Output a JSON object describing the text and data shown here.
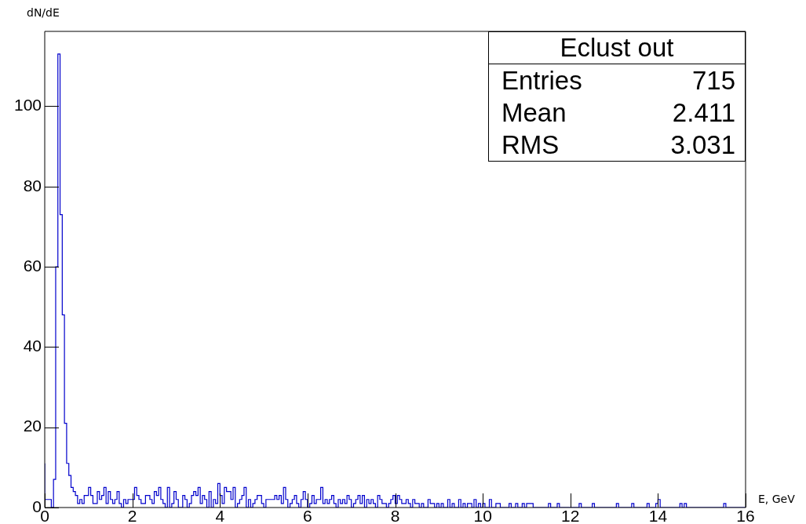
{
  "chart_data": {
    "type": "histogram",
    "xlabel": "E, GeV",
    "ylabel": "dN/dE",
    "annotations": [
      "Eclust out",
      "Entries",
      "715",
      "Mean",
      "2.411",
      "RMS",
      "3.031"
    ],
    "color": "#0000cc",
    "bins": [
      0,
      0.05,
      0.1,
      0.15,
      0.2,
      0.25,
      0.3,
      0.35,
      0.4,
      0.45,
      0.5,
      0.55,
      0.6,
      0.65,
      0.7,
      0.75,
      0.8,
      0.85,
      0.9,
      0.95,
      1,
      1.05,
      1.1,
      1.15,
      1.2,
      1.25,
      1.3,
      1.35,
      1.4,
      1.45,
      1.5,
      1.55,
      1.6,
      1.65,
      1.7,
      1.75,
      1.8,
      1.85,
      1.9,
      1.95,
      2,
      2.05,
      2.1,
      2.15,
      2.2,
      2.25,
      2.3,
      2.35,
      2.4,
      2.45,
      2.5,
      2.55,
      2.6,
      2.65,
      2.7,
      2.75,
      2.8,
      2.85,
      2.9,
      2.95,
      3,
      3.05,
      3.1,
      3.15,
      3.2,
      3.25,
      3.3,
      3.35,
      3.4,
      3.45,
      3.5,
      3.55,
      3.6,
      3.65,
      3.7,
      3.75,
      3.8,
      3.85,
      3.9,
      3.95,
      4,
      4.05,
      4.1,
      4.15,
      4.2,
      4.25,
      4.3,
      4.35,
      4.4,
      4.45,
      4.5,
      4.55,
      4.6,
      4.65,
      4.7,
      4.75,
      4.8,
      4.85,
      4.9,
      4.95,
      5,
      5.05,
      5.1,
      5.15,
      5.2,
      5.25,
      5.3,
      5.35,
      5.4,
      5.45,
      5.5,
      5.55,
      5.6,
      5.65,
      5.7,
      5.75,
      5.8,
      5.85,
      5.9,
      5.95,
      6,
      6.05,
      6.1,
      6.15,
      6.2,
      6.25,
      6.3,
      6.35,
      6.4,
      6.45,
      6.5,
      6.55,
      6.6,
      6.65,
      6.7,
      6.75,
      6.8,
      6.85,
      6.9,
      6.95,
      7,
      7.05,
      7.1,
      7.15,
      7.2,
      7.25,
      7.3,
      7.35,
      7.4,
      7.45,
      7.5,
      7.55,
      7.6,
      7.65,
      7.7,
      7.75,
      7.8,
      7.85,
      7.9,
      7.95,
      8,
      8.05,
      8.1,
      8.15,
      8.2,
      8.25,
      8.3,
      8.35,
      8.4,
      8.45,
      8.5,
      8.55,
      8.6,
      8.65,
      8.7,
      8.75,
      8.8,
      8.85,
      8.9,
      8.95,
      9,
      9.05,
      9.1,
      9.15,
      9.2,
      9.25,
      9.3,
      9.35,
      9.4,
      9.45,
      9.5,
      9.55,
      9.6,
      9.65,
      9.7,
      9.75,
      9.8,
      9.85,
      9.9,
      9.95,
      10,
      10.05,
      10.1,
      10.15,
      10.2,
      10.25,
      10.3,
      10.35,
      10.4,
      10.45,
      10.5,
      10.55,
      10.6,
      10.65,
      10.7,
      10.75,
      10.8,
      10.85,
      10.9,
      10.95,
      11,
      11.05,
      11.1,
      11.15,
      11.2,
      11.25,
      11.3,
      11.35,
      11.4,
      11.45,
      11.5,
      11.55,
      11.6,
      11.65,
      11.7,
      11.75,
      11.8,
      11.85,
      11.9,
      11.95,
      12,
      12.05,
      12.1,
      12.15,
      12.2,
      12.25,
      12.3,
      12.35,
      12.4,
      12.45,
      12.5,
      12.55,
      12.6,
      12.65,
      12.7,
      12.75,
      12.8,
      12.85,
      12.9,
      12.95,
      13,
      13.05,
      13.1,
      13.15,
      13.2,
      13.25,
      13.3,
      13.35,
      13.4,
      13.45,
      13.5,
      13.55,
      13.6,
      13.65,
      13.7,
      13.75,
      13.8,
      13.85,
      13.9,
      13.95,
      14,
      14.05,
      14.1,
      14.15,
      14.2,
      14.25,
      14.3,
      14.35,
      14.4,
      14.45,
      14.5,
      14.55,
      14.6,
      14.65,
      14.7,
      14.75,
      14.8,
      14.85,
      14.9,
      14.95,
      15,
      15.05,
      15.1,
      15.15,
      15.2,
      15.25,
      15.3,
      15.35,
      15.4,
      15.45,
      15.5,
      15.55,
      15.6,
      15.65,
      15.7,
      15.75,
      15.8,
      15.85,
      15.9,
      15.95,
      16
    ],
    "values": [
      11,
      2,
      2,
      2,
      0,
      7,
      60,
      113,
      73,
      48,
      21,
      11,
      8,
      5,
      4,
      3,
      1,
      2,
      1,
      3,
      3,
      5,
      3,
      1,
      1,
      4,
      2,
      3,
      5,
      1,
      4,
      2,
      1,
      2,
      4,
      1,
      0,
      2,
      1,
      2,
      2,
      2,
      5,
      3,
      2,
      1,
      1,
      3,
      3,
      2,
      1,
      4,
      3,
      5,
      2,
      1,
      0,
      5,
      0,
      1,
      4,
      2,
      0,
      0,
      3,
      2,
      0,
      1,
      3,
      4,
      3,
      5,
      1,
      3,
      2,
      0,
      4,
      0,
      2,
      1,
      6,
      3,
      1,
      5,
      4,
      4,
      2,
      5,
      0,
      1,
      2,
      3,
      5,
      0,
      2,
      0,
      1,
      2,
      3,
      3,
      1,
      0,
      2,
      2,
      2,
      2,
      3,
      2,
      3,
      1,
      5,
      2,
      0,
      1,
      2,
      3,
      1,
      0,
      2,
      4,
      2,
      0,
      1,
      3,
      1,
      2,
      2,
      5,
      1,
      2,
      1,
      2,
      3,
      1,
      0,
      2,
      1,
      2,
      1,
      3,
      2,
      0,
      1,
      2,
      3,
      1,
      3,
      0,
      2,
      1,
      2,
      1,
      0,
      3,
      2,
      1,
      1,
      0,
      1,
      2,
      3,
      1,
      3,
      2,
      1,
      1,
      2,
      1,
      0,
      2,
      1,
      1,
      0,
      1,
      0,
      0,
      2,
      1,
      1,
      0,
      1,
      0,
      1,
      0,
      0,
      2,
      0,
      1,
      0,
      0,
      2,
      0,
      1,
      0,
      1,
      1,
      0,
      2,
      0,
      1,
      0,
      1,
      0,
      0,
      2,
      0,
      0,
      1,
      1,
      0,
      0,
      0,
      0,
      1,
      0,
      0,
      1,
      0,
      0,
      1,
      0,
      1,
      1,
      1,
      0,
      0,
      0,
      0,
      0,
      0,
      0,
      1,
      0,
      0,
      0,
      1,
      0,
      0,
      0,
      0,
      0,
      0,
      0,
      0,
      0,
      1,
      0,
      0,
      0,
      0,
      0,
      1,
      0,
      0,
      0,
      0,
      0,
      0,
      0,
      0,
      0,
      0,
      1,
      0,
      0,
      0,
      0,
      0,
      0,
      1,
      0,
      0,
      0,
      0,
      0,
      0,
      1,
      0,
      0,
      0,
      1,
      2,
      0,
      0,
      0,
      0,
      0,
      0,
      0,
      0,
      0,
      1,
      0,
      1,
      0,
      0,
      0,
      0,
      0,
      0,
      0,
      0,
      0,
      0,
      0,
      0,
      0,
      0,
      0,
      0,
      0,
      1,
      0,
      0,
      0,
      0,
      0,
      0,
      0,
      0
    ],
    "xlim": [
      0,
      16
    ],
    "xticks": [
      0,
      2,
      4,
      6,
      8,
      10,
      12,
      14,
      16
    ],
    "ylim": [
      0,
      118.65
    ],
    "yticks": [
      0,
      20,
      40,
      60,
      80,
      100
    ],
    "grid": false,
    "legend": false
  }
}
